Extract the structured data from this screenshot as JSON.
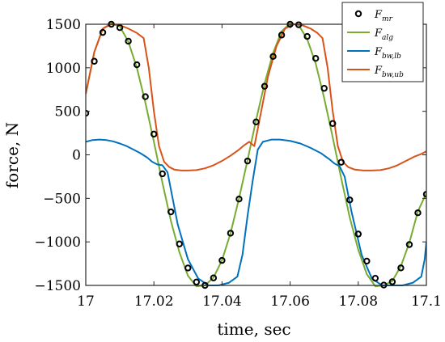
{
  "chart_data": {
    "type": "line",
    "xlabel": "time, sec",
    "ylabel": "force, N",
    "xlim": [
      17,
      17.1
    ],
    "ylim": [
      -1500,
      1500
    ],
    "x_ticks": [
      17,
      17.02,
      17.04,
      17.06,
      17.08,
      17.1
    ],
    "x_tick_labels": [
      "17",
      "17.02",
      "17.04",
      "17.06",
      "17.08",
      "17.1"
    ],
    "y_ticks": [
      -1500,
      -1000,
      -500,
      0,
      500,
      1000,
      1500
    ],
    "y_tick_labels": [
      "−1500",
      "−1000",
      "−500",
      "0",
      "500",
      "1000",
      "1500"
    ],
    "grid": false,
    "legend_placement": "top-right",
    "series": [
      {
        "key": "mr",
        "name_main": "F",
        "name_sub": "mr",
        "style": "markers",
        "marker": "circle-open",
        "color": "#000000",
        "x": [
          17.0,
          17.0025,
          17.005,
          17.0075,
          17.01,
          17.0125,
          17.015,
          17.0175,
          17.02,
          17.0225,
          17.025,
          17.0275,
          17.03,
          17.0325,
          17.035,
          17.0375,
          17.04,
          17.0425,
          17.045,
          17.0475,
          17.05,
          17.0525,
          17.055,
          17.0575,
          17.06,
          17.0625,
          17.065,
          17.0675,
          17.07,
          17.0725,
          17.075,
          17.0775,
          17.08,
          17.0825,
          17.085,
          17.0875,
          17.09,
          17.0925,
          17.095,
          17.0975,
          17.1
        ],
        "y": [
          478,
          1075,
          1406,
          1500,
          1461,
          1306,
          1035,
          668,
          238,
          -218,
          -655,
          -1024,
          -1300,
          -1461,
          -1500,
          -1414,
          -1213,
          -900,
          -508,
          -71,
          378,
          788,
          1130,
          1376,
          1500,
          1494,
          1360,
          1108,
          764,
          360,
          -85,
          -518,
          -910,
          -1221,
          -1418,
          -1496,
          -1458,
          -1299,
          -1031,
          -666,
          -453
        ]
      },
      {
        "key": "alg",
        "name_main": "F",
        "name_sub": "alg",
        "style": "line",
        "color": "#77ac30",
        "x": [
          17.0,
          17.0025,
          17.005,
          17.0075,
          17.01,
          17.0125,
          17.015,
          17.0175,
          17.02,
          17.0225,
          17.025,
          17.0275,
          17.03,
          17.0325,
          17.035,
          17.0375,
          17.04,
          17.0425,
          17.045,
          17.0475,
          17.05,
          17.0525,
          17.055,
          17.0575,
          17.06,
          17.0625,
          17.065,
          17.0675,
          17.07,
          17.0725,
          17.075,
          17.0775,
          17.08,
          17.0825,
          17.085,
          17.0875,
          17.09,
          17.0925,
          17.095,
          17.0975,
          17.1
        ],
        "y": [
          700,
          1180,
          1450,
          1510,
          1475,
          1300,
          1000,
          600,
          150,
          -320,
          -760,
          -1120,
          -1390,
          -1510,
          -1500,
          -1410,
          -1210,
          -900,
          -500,
          -60,
          400,
          820,
          1170,
          1420,
          1510,
          1490,
          1330,
          1050,
          650,
          200,
          -270,
          -720,
          -1090,
          -1370,
          -1510,
          -1500,
          -1450,
          -1280,
          -1010,
          -650,
          -440
        ]
      },
      {
        "key": "bw_lb",
        "name_main": "F",
        "name_sub": "bw,lb",
        "style": "line",
        "color": "#0072bd",
        "x": [
          17.0,
          17.002,
          17.004,
          17.006,
          17.008,
          17.01,
          17.012,
          17.014,
          17.016,
          17.018,
          17.0195,
          17.021,
          17.0225,
          17.024,
          17.0255,
          17.027,
          17.03,
          17.033,
          17.036,
          17.039,
          17.042,
          17.0445,
          17.046,
          17.0475,
          17.049,
          17.0505,
          17.052,
          17.0545,
          17.057,
          17.06,
          17.063,
          17.066,
          17.069,
          17.0715,
          17.073,
          17.0745,
          17.076,
          17.078,
          17.081,
          17.084,
          17.087,
          17.09,
          17.093,
          17.096,
          17.0985,
          17.0995,
          17.1
        ],
        "y": [
          150,
          170,
          175,
          170,
          155,
          130,
          100,
          60,
          20,
          -30,
          -80,
          -110,
          -120,
          -200,
          -500,
          -800,
          -1200,
          -1420,
          -1500,
          -1500,
          -1470,
          -1400,
          -1150,
          -700,
          -300,
          60,
          150,
          175,
          175,
          160,
          130,
          80,
          20,
          -50,
          -100,
          -130,
          -250,
          -650,
          -1150,
          -1420,
          -1500,
          -1500,
          -1500,
          -1470,
          -1400,
          -1200,
          -1000
        ]
      },
      {
        "key": "bw_ub",
        "name_main": "F",
        "name_sub": "bw,ub",
        "style": "line",
        "color": "#d95319",
        "x": [
          17.0,
          17.0025,
          17.005,
          17.0075,
          17.01,
          17.0125,
          17.015,
          17.017,
          17.0185,
          17.02,
          17.0215,
          17.023,
          17.0245,
          17.026,
          17.028,
          17.03,
          17.0325,
          17.035,
          17.0375,
          17.04,
          17.0425,
          17.045,
          17.0465,
          17.048,
          17.0495,
          17.051,
          17.0535,
          17.056,
          17.0585,
          17.061,
          17.0635,
          17.066,
          17.068,
          17.0695,
          17.071,
          17.0725,
          17.074,
          17.0755,
          17.077,
          17.079,
          17.0815,
          17.084,
          17.0865,
          17.089,
          17.0915,
          17.094,
          17.0965,
          17.0985,
          17.1
        ],
        "y": [
          700,
          1180,
          1450,
          1500,
          1490,
          1450,
          1400,
          1340,
          1000,
          500,
          100,
          -80,
          -140,
          -170,
          -180,
          -180,
          -175,
          -155,
          -120,
          -70,
          -10,
          60,
          110,
          150,
          100,
          400,
          900,
          1250,
          1450,
          1500,
          1490,
          1450,
          1400,
          1340,
          1000,
          500,
          100,
          -80,
          -140,
          -170,
          -180,
          -180,
          -175,
          -155,
          -120,
          -70,
          -20,
          10,
          40
        ]
      }
    ]
  }
}
